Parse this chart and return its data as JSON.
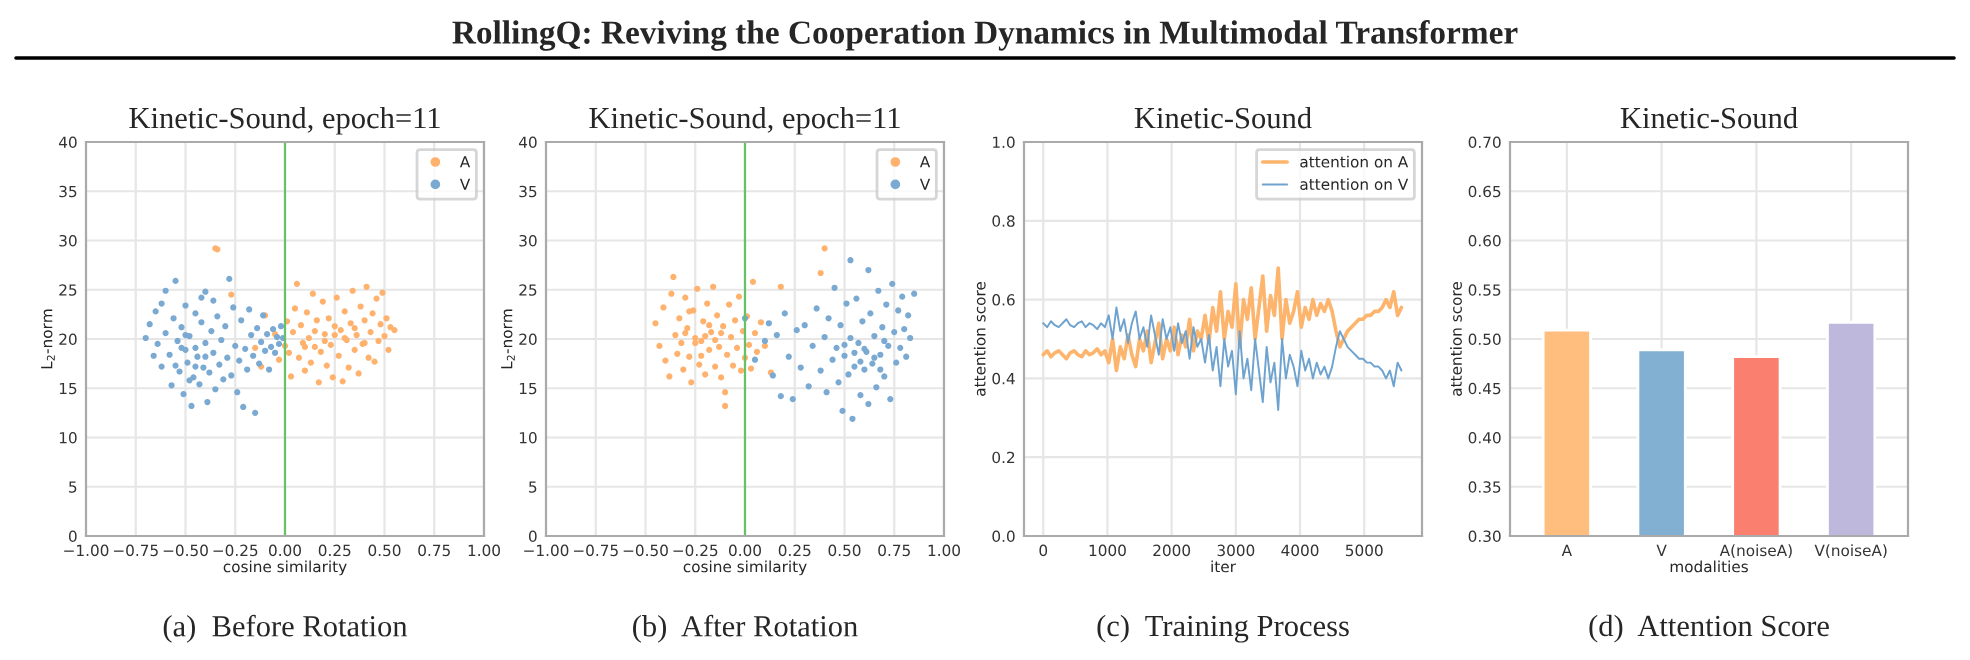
{
  "chart_data": [
    {
      "type": "scatter",
      "title": "Kinetic-Sound, epoch=11",
      "xlabel": "cosine similarity",
      "ylabel": "L$_{2}$-norm",
      "annotations": [
        "RollingQ: Reviving the Cooperation Dynamics in Multimodal Transformer",
        "(a)  Before Rotation"
      ],
      "xlim": [
        -1,
        1
      ],
      "xticks": [
        {
          "value": -1,
          "label": "−1.00"
        },
        {
          "value": -0.75,
          "label": "−0.75"
        },
        {
          "value": -0.5,
          "label": "−0.50"
        },
        {
          "value": -0.25,
          "label": "−0.25"
        },
        {
          "value": 0,
          "label": "0.00"
        },
        {
          "value": 0.25,
          "label": "0.25"
        },
        {
          "value": 0.5,
          "label": "0.50"
        },
        {
          "value": 0.75,
          "label": "0.75"
        },
        {
          "value": 1,
          "label": "1.00"
        }
      ],
      "ylim": [
        0,
        40
      ],
      "yticks": [
        0,
        5,
        10,
        15,
        20,
        25,
        30,
        35,
        40
      ],
      "grid": true,
      "legend": "top right",
      "marker": "circle",
      "ref_lines": [
        {
          "axis": "x",
          "value": 0,
          "color": "#66c266"
        }
      ],
      "series": [
        {
          "name": "A",
          "color": "#ffb26e",
          "x": [
            -0.35,
            -0.34,
            -0.27,
            -0.15,
            -0.12,
            -0.1,
            -0.05,
            -0.03,
            0.0,
            0.01,
            0.02,
            0.03,
            0.04,
            0.05,
            0.06,
            0.07,
            0.08,
            0.09,
            0.1,
            0.11,
            0.12,
            0.13,
            0.14,
            0.15,
            0.16,
            0.17,
            0.18,
            0.19,
            0.2,
            0.21,
            0.22,
            0.23,
            0.24,
            0.25,
            0.26,
            0.27,
            0.28,
            0.29,
            0.3,
            0.31,
            0.32,
            0.33,
            0.34,
            0.35,
            0.36,
            0.37,
            0.38,
            0.39,
            0.4,
            0.41,
            0.42,
            0.43,
            0.44,
            0.45,
            0.46,
            0.47,
            0.48,
            0.49,
            0.5,
            0.51,
            0.52,
            0.53,
            0.55,
            0.2,
            0.25,
            0.3,
            0.35,
            0.15,
            0.4,
            0.1
          ],
          "values": [
            29.2,
            29.1,
            24.5,
            19.1,
            17.2,
            22.4,
            20.5,
            17.9,
            19.3,
            21.8,
            18.6,
            16.2,
            20.7,
            23.1,
            25.6,
            18.1,
            21.4,
            19.6,
            16.8,
            22.7,
            20.1,
            17.6,
            24.6,
            19.2,
            21.9,
            15.6,
            18.7,
            23.8,
            20.5,
            17.3,
            22.1,
            19.4,
            16.1,
            21.3,
            24.2,
            18.3,
            20.9,
            15.7,
            22.8,
            19.9,
            17.1,
            21.6,
            24.9,
            18.9,
            20.4,
            16.5,
            23.3,
            19.5,
            21.9,
            25.3,
            18.1,
            20.7,
            22.6,
            17.7,
            24.1,
            19.8,
            21.5,
            24.7,
            20.3,
            22.1,
            18.9,
            21.2,
            20.9,
            19.8,
            20.4,
            20.1,
            21.1,
            20.8,
            19.6,
            19.2
          ]
        },
        {
          "name": "V",
          "color": "#7aa9d2",
          "x": [
            -0.68,
            -0.65,
            -0.64,
            -0.62,
            -0.6,
            -0.6,
            -0.58,
            -0.57,
            -0.56,
            -0.55,
            -0.54,
            -0.53,
            -0.52,
            -0.51,
            -0.5,
            -0.5,
            -0.49,
            -0.48,
            -0.47,
            -0.46,
            -0.45,
            -0.45,
            -0.44,
            -0.43,
            -0.42,
            -0.41,
            -0.4,
            -0.4,
            -0.39,
            -0.38,
            -0.37,
            -0.36,
            -0.35,
            -0.34,
            -0.33,
            -0.32,
            -0.31,
            -0.3,
            -0.29,
            -0.28,
            -0.27,
            -0.26,
            -0.25,
            -0.24,
            -0.23,
            -0.22,
            -0.21,
            -0.2,
            -0.19,
            -0.18,
            -0.17,
            -0.16,
            -0.15,
            -0.14,
            -0.13,
            -0.12,
            -0.11,
            -0.1,
            -0.09,
            -0.08,
            -0.07,
            -0.06,
            -0.05,
            -0.04,
            -0.03,
            -0.02,
            -0.01,
            -0.7,
            -0.66,
            -0.62,
            -0.55,
            -0.48,
            -0.42,
            -0.36,
            -0.52,
            -0.45,
            -0.4,
            -0.5
          ],
          "values": [
            21.5,
            22.8,
            19.5,
            17.2,
            24.9,
            20.6,
            18.4,
            15.3,
            22.1,
            25.9,
            19.8,
            16.7,
            21.2,
            14.4,
            18.9,
            23.4,
            17.6,
            20.3,
            13.2,
            16.1,
            19.1,
            22.6,
            18.2,
            15.4,
            21.7,
            17.1,
            24.8,
            19.6,
            13.6,
            16.6,
            20.8,
            18.6,
            14.9,
            22.3,
            17.4,
            19.9,
            15.9,
            21.3,
            18.1,
            26.1,
            16.3,
            23.2,
            19.3,
            14.6,
            17.8,
            21.9,
            13.1,
            19.0,
            16.9,
            23.0,
            20.4,
            18.3,
            12.5,
            21.1,
            17.5,
            19.7,
            22.4,
            18.8,
            20.5,
            16.9,
            19.2,
            21.0,
            18.6,
            20.2,
            19.5,
            21.3,
            20.1,
            20.1,
            18.3,
            23.6,
            17.3,
            15.8,
            24.2,
            23.9,
            19.1,
            17.2,
            18.2,
            20.4
          ]
        }
      ]
    },
    {
      "type": "scatter",
      "title": "Kinetic-Sound, epoch=11",
      "xlabel": "cosine similarity",
      "ylabel": "L$_{2}$-norm",
      "annotations": [
        "(b)  After Rotation"
      ],
      "xlim": [
        -1,
        1
      ],
      "xticks": [
        {
          "value": -1,
          "label": "−1.00"
        },
        {
          "value": -0.75,
          "label": "−0.75"
        },
        {
          "value": -0.5,
          "label": "−0.50"
        },
        {
          "value": -0.25,
          "label": "−0.25"
        },
        {
          "value": 0,
          "label": "0.00"
        },
        {
          "value": 0.25,
          "label": "0.25"
        },
        {
          "value": 0.5,
          "label": "0.50"
        },
        {
          "value": 0.75,
          "label": "0.75"
        },
        {
          "value": 1,
          "label": "1.00"
        }
      ],
      "ylim": [
        0,
        40
      ],
      "yticks": [
        0,
        5,
        10,
        15,
        20,
        25,
        30,
        35,
        40
      ],
      "grid": true,
      "legend": "top right",
      "marker": "circle",
      "ref_lines": [
        {
          "axis": "x",
          "value": 0,
          "color": "#66c266"
        }
      ],
      "series": [
        {
          "name": "A",
          "color": "#ffb26e",
          "x": [
            -0.45,
            -0.43,
            -0.41,
            -0.4,
            -0.38,
            -0.37,
            -0.36,
            -0.35,
            -0.34,
            -0.33,
            -0.32,
            -0.31,
            -0.3,
            -0.29,
            -0.28,
            -0.27,
            -0.26,
            -0.25,
            -0.24,
            -0.23,
            -0.22,
            -0.21,
            -0.2,
            -0.19,
            -0.18,
            -0.17,
            -0.16,
            -0.15,
            -0.14,
            -0.13,
            -0.12,
            -0.11,
            -0.1,
            -0.1,
            -0.09,
            -0.08,
            -0.07,
            -0.06,
            -0.05,
            -0.04,
            -0.03,
            -0.02,
            -0.01,
            0.0,
            0.01,
            0.02,
            0.03,
            0.04,
            0.05,
            0.06,
            0.08,
            0.1,
            0.13,
            0.18,
            0.38,
            0.4,
            -0.25,
            -0.2,
            -0.15,
            -0.3,
            -0.22,
            -0.18,
            -0.28,
            -0.12
          ],
          "values": [
            21.6,
            19.3,
            23.2,
            17.8,
            16.2,
            24.6,
            26.3,
            20.4,
            18.5,
            22.1,
            19.6,
            16.9,
            24.2,
            21.1,
            18.2,
            15.6,
            22.9,
            20.1,
            25.1,
            17.4,
            19.8,
            21.8,
            16.4,
            23.6,
            18.9,
            20.7,
            25.3,
            17.2,
            22.4,
            19.2,
            16.1,
            21.3,
            14.6,
            13.2,
            18.4,
            23.5,
            20.2,
            17.3,
            21.9,
            19.1,
            24.3,
            16.8,
            20.8,
            18.1,
            22.3,
            19.4,
            17.0,
            25.8,
            20.6,
            18.7,
            21.7,
            19.3,
            16.6,
            25.3,
            26.7,
            29.2,
            19.6,
            20.3,
            19.9,
            20.6,
            18.3,
            21.4,
            22.8,
            20.6
          ]
        },
        {
          "name": "V",
          "color": "#7aa9d2",
          "x": [
            0.0,
            0.05,
            0.1,
            0.12,
            0.14,
            0.16,
            0.18,
            0.2,
            0.22,
            0.24,
            0.26,
            0.28,
            0.3,
            0.32,
            0.34,
            0.36,
            0.38,
            0.4,
            0.41,
            0.42,
            0.44,
            0.45,
            0.46,
            0.47,
            0.48,
            0.49,
            0.5,
            0.51,
            0.52,
            0.53,
            0.53,
            0.54,
            0.55,
            0.56,
            0.57,
            0.58,
            0.59,
            0.6,
            0.61,
            0.62,
            0.62,
            0.63,
            0.64,
            0.65,
            0.66,
            0.67,
            0.68,
            0.69,
            0.7,
            0.71,
            0.72,
            0.73,
            0.74,
            0.75,
            0.76,
            0.77,
            0.78,
            0.79,
            0.8,
            0.81,
            0.82,
            0.83,
            0.85,
            0.55,
            0.6,
            0.65,
            0.7,
            0.58,
            0.5,
            0.68
          ],
          "values": [
            22.1,
            17.9,
            19.8,
            21.6,
            16.3,
            20.4,
            14.2,
            22.6,
            18.2,
            13.9,
            20.9,
            17.1,
            21.4,
            15.2,
            19.3,
            23.1,
            16.8,
            20.2,
            14.6,
            22.1,
            17.9,
            25.2,
            19.1,
            15.6,
            21.4,
            12.7,
            18.3,
            23.6,
            16.4,
            28.0,
            20.1,
            11.9,
            17.2,
            24.1,
            19.6,
            14.3,
            21.8,
            16.9,
            18.7,
            27.0,
            13.4,
            22.6,
            17.5,
            20.3,
            15.1,
            24.9,
            18.4,
            21.2,
            16.2,
            23.5,
            19.3,
            13.9,
            25.6,
            20.7,
            17.6,
            22.9,
            19.1,
            24.3,
            21.0,
            18.2,
            22.4,
            20.1,
            24.6,
            18.6,
            19.0,
            18.1,
            19.8,
            17.7,
            19.4,
            16.9
          ]
        }
      ]
    },
    {
      "type": "line",
      "title": "Kinetic-Sound",
      "xlabel": "iter",
      "ylabel": "attention score",
      "annotations": [
        "(c)  Training Process"
      ],
      "xlim": [
        -300,
        5900
      ],
      "xticks": [
        0,
        1000,
        2000,
        3000,
        4000,
        5000
      ],
      "ylim": [
        0,
        1
      ],
      "yticks": [
        {
          "value": 0,
          "label": "0.0"
        },
        {
          "value": 0.2,
          "label": "0.2"
        },
        {
          "value": 0.4,
          "label": "0.4"
        },
        {
          "value": 0.6,
          "label": "0.6"
        },
        {
          "value": 0.8,
          "label": "0.8"
        },
        {
          "value": 1,
          "label": "1.0"
        }
      ],
      "grid": true,
      "legend": "top right",
      "line_style": "solid",
      "x": [
        0,
        60,
        120,
        180,
        240,
        300,
        360,
        420,
        480,
        540,
        600,
        660,
        720,
        780,
        840,
        900,
        960,
        1020,
        1080,
        1140,
        1200,
        1260,
        1320,
        1380,
        1440,
        1500,
        1560,
        1620,
        1680,
        1740,
        1800,
        1860,
        1920,
        1980,
        2040,
        2100,
        2160,
        2220,
        2280,
        2340,
        2400,
        2460,
        2520,
        2580,
        2640,
        2700,
        2760,
        2820,
        2880,
        2940,
        3000,
        3060,
        3120,
        3180,
        3240,
        3300,
        3360,
        3420,
        3480,
        3540,
        3600,
        3660,
        3720,
        3780,
        3840,
        3900,
        3960,
        4020,
        4080,
        4140,
        4200,
        4260,
        4320,
        4380,
        4440,
        4500,
        4560,
        4620,
        4680,
        4740,
        4800,
        4860,
        4920,
        4980,
        5040,
        5100,
        5160,
        5220,
        5280,
        5340,
        5400,
        5460,
        5520,
        5580
      ],
      "series": [
        {
          "name": "attention on A",
          "color": "#fdb46c",
          "values": [
            0.46,
            0.47,
            0.455,
            0.465,
            0.47,
            0.46,
            0.45,
            0.465,
            0.47,
            0.46,
            0.455,
            0.47,
            0.46,
            0.465,
            0.475,
            0.46,
            0.47,
            0.44,
            0.5,
            0.42,
            0.48,
            0.45,
            0.51,
            0.46,
            0.43,
            0.5,
            0.47,
            0.52,
            0.44,
            0.49,
            0.54,
            0.45,
            0.5,
            0.47,
            0.53,
            0.46,
            0.51,
            0.48,
            0.55,
            0.47,
            0.52,
            0.5,
            0.56,
            0.49,
            0.58,
            0.52,
            0.62,
            0.5,
            0.57,
            0.53,
            0.64,
            0.48,
            0.6,
            0.55,
            0.63,
            0.5,
            0.58,
            0.66,
            0.52,
            0.61,
            0.56,
            0.68,
            0.5,
            0.6,
            0.54,
            0.57,
            0.62,
            0.53,
            0.58,
            0.55,
            0.6,
            0.56,
            0.59,
            0.57,
            0.6,
            0.57,
            0.52,
            0.48,
            0.5,
            0.52,
            0.53,
            0.54,
            0.55,
            0.55,
            0.56,
            0.56,
            0.57,
            0.57,
            0.58,
            0.6,
            0.58,
            0.62,
            0.56,
            0.58
          ]
        },
        {
          "name": "attention on V",
          "color": "#6fa3cf",
          "values": [
            0.54,
            0.53,
            0.545,
            0.535,
            0.53,
            0.54,
            0.55,
            0.535,
            0.53,
            0.54,
            0.545,
            0.53,
            0.54,
            0.535,
            0.525,
            0.54,
            0.53,
            0.56,
            0.5,
            0.58,
            0.52,
            0.55,
            0.49,
            0.54,
            0.57,
            0.5,
            0.53,
            0.48,
            0.56,
            0.51,
            0.46,
            0.55,
            0.5,
            0.53,
            0.47,
            0.54,
            0.49,
            0.52,
            0.45,
            0.53,
            0.48,
            0.5,
            0.44,
            0.51,
            0.42,
            0.48,
            0.38,
            0.5,
            0.43,
            0.47,
            0.36,
            0.52,
            0.4,
            0.45,
            0.37,
            0.5,
            0.42,
            0.34,
            0.48,
            0.39,
            0.44,
            0.32,
            0.5,
            0.4,
            0.46,
            0.43,
            0.38,
            0.47,
            0.42,
            0.45,
            0.4,
            0.44,
            0.41,
            0.43,
            0.4,
            0.43,
            0.48,
            0.52,
            0.5,
            0.48,
            0.47,
            0.46,
            0.45,
            0.45,
            0.44,
            0.44,
            0.43,
            0.43,
            0.42,
            0.4,
            0.42,
            0.38,
            0.44,
            0.42
          ]
        }
      ]
    },
    {
      "type": "bar",
      "title": "Kinetic-Sound",
      "xlabel": "modalities",
      "ylabel": "attention score",
      "annotations": [
        "(d)  Attention Score"
      ],
      "categories": [
        "A",
        "V",
        "A(noiseA)",
        "V(noiseA)"
      ],
      "values": [
        0.509,
        0.489,
        0.482,
        0.517
      ],
      "colors": [
        "#ffbe7d",
        "#82b0d2",
        "#fa7f6f",
        "#beb8dc"
      ],
      "ylim": [
        0.3,
        0.7
      ],
      "yticks": [
        {
          "value": 0.3,
          "label": "0.30"
        },
        {
          "value": 0.35,
          "label": "0.35"
        },
        {
          "value": 0.4,
          "label": "0.40"
        },
        {
          "value": 0.45,
          "label": "0.45"
        },
        {
          "value": 0.5,
          "label": "0.50"
        },
        {
          "value": 0.55,
          "label": "0.55"
        },
        {
          "value": 0.6,
          "label": "0.60"
        },
        {
          "value": 0.65,
          "label": "0.65"
        },
        {
          "value": 0.7,
          "label": "0.70"
        }
      ],
      "grid": true
    }
  ]
}
